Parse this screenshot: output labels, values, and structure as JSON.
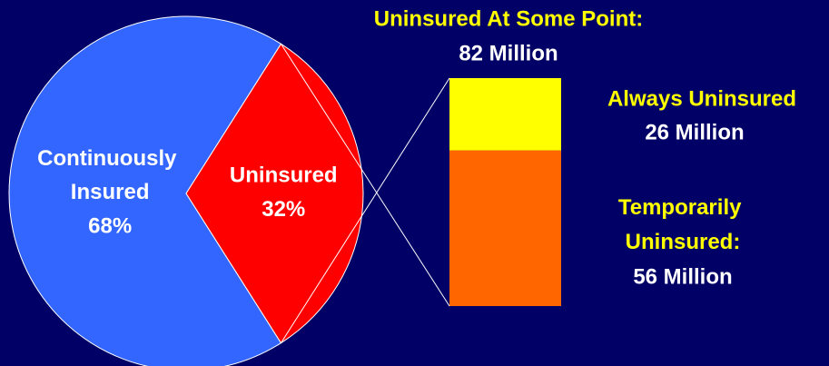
{
  "chart_data": [
    {
      "type": "pie",
      "categories": [
        "Continuously Insured",
        "Uninsured"
      ],
      "values": [
        68,
        32
      ],
      "value_labels": [
        "68%",
        "32%"
      ],
      "colors": [
        "#3366ff",
        "#ff0000"
      ]
    },
    {
      "type": "bar",
      "title": "Uninsured At Some Point:",
      "total": 82,
      "total_label": "82 Million",
      "series": [
        {
          "name": "Always Uninsured",
          "color": "#ffff00",
          "values": [
            26
          ],
          "value_labels": [
            "26 Million"
          ]
        },
        {
          "name": "Temporarily Uninsured:",
          "color": "#ff6600",
          "values": [
            56
          ],
          "value_labels": [
            "56 Million"
          ]
        }
      ]
    }
  ]
}
